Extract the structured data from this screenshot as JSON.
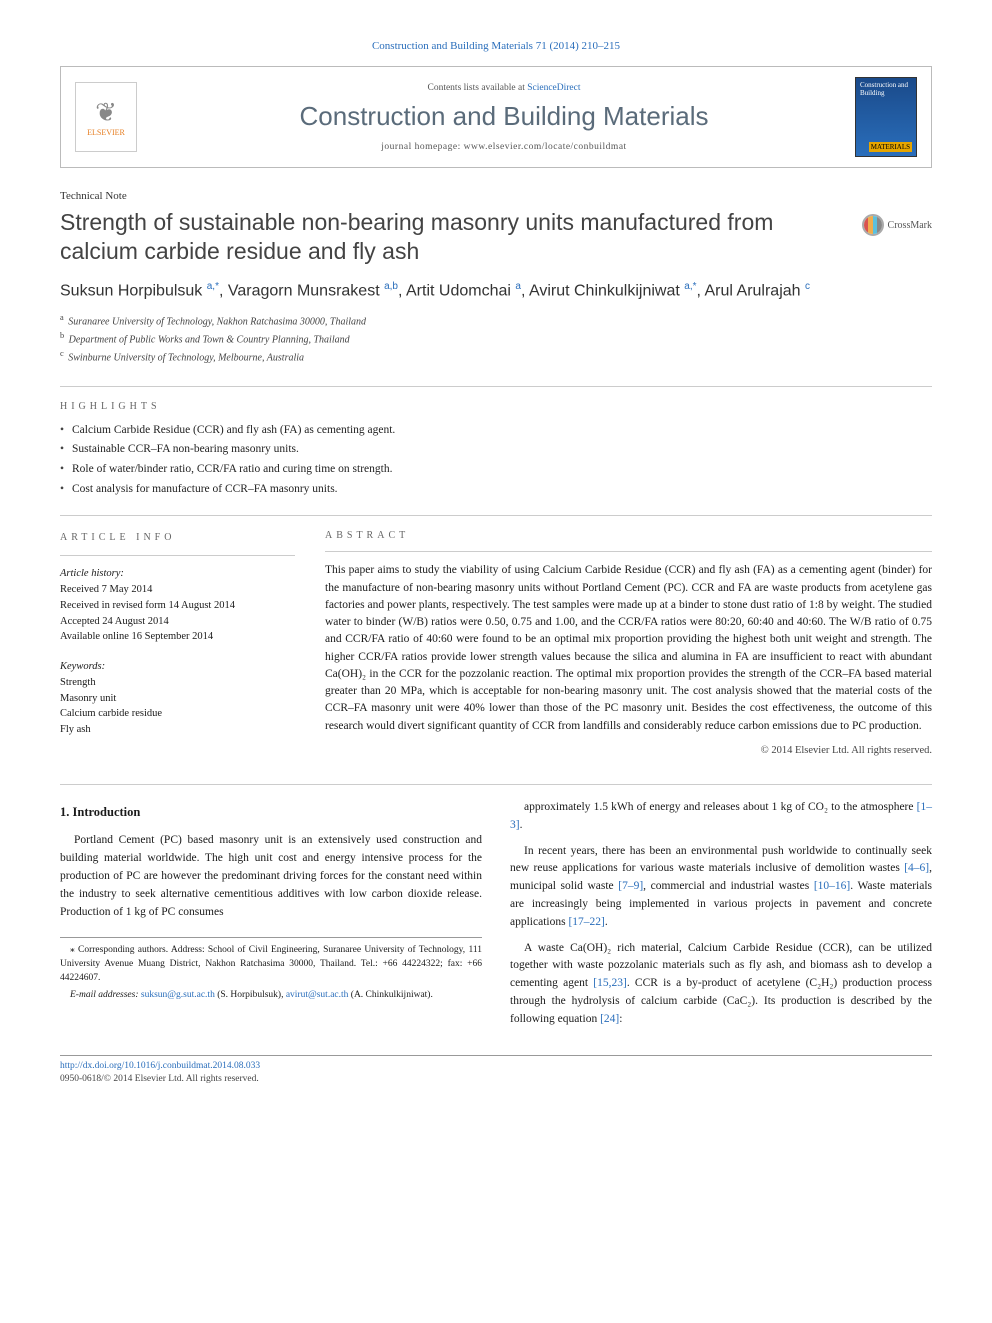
{
  "citation": "Construction and Building Materials 71 (2014) 210–215",
  "header": {
    "contents_prefix": "Contents lists available at ",
    "contents_link": "ScienceDirect",
    "journal_name": "Construction and Building Materials",
    "homepage_prefix": "journal homepage: ",
    "homepage_url": "www.elsevier.com/locate/conbuildmat",
    "publisher": "ELSEVIER",
    "cover_title": "Construction and Building",
    "cover_word": "MATERIALS"
  },
  "technote": "Technical Note",
  "article_title": "Strength of sustainable non-bearing masonry units manufactured from calcium carbide residue and fly ash",
  "crossmark_label": "CrossMark",
  "authors_html": "Suksun Horpibulsuk <sup>a,*</sup>, Varagorn Munsrakest <sup>a,b</sup>, Artit Udomchai <sup>a</sup>, Avirut Chinkulkijniwat <sup>a,*</sup>, Arul Arulrajah <sup>c</sup>",
  "affiliations": [
    "Suranaree University of Technology, Nakhon Ratchasima 30000, Thailand",
    "Department of Public Works and Town & Country Planning, Thailand",
    "Swinburne University of Technology, Melbourne, Australia"
  ],
  "aff_marks": [
    "a",
    "b",
    "c"
  ],
  "highlights_label": "HIGHLIGHTS",
  "highlights": [
    "Calcium Carbide Residue (CCR) and fly ash (FA) as cementing agent.",
    "Sustainable CCR–FA non-bearing masonry units.",
    "Role of water/binder ratio, CCR/FA ratio and curing time on strength.",
    "Cost analysis for manufacture of CCR–FA masonry units."
  ],
  "info_label": "ARTICLE INFO",
  "abstract_label": "ABSTRACT",
  "history": {
    "head": "Article history:",
    "items": [
      "Received 7 May 2014",
      "Received in revised form 14 August 2014",
      "Accepted 24 August 2014",
      "Available online 16 September 2014"
    ]
  },
  "keywords": {
    "head": "Keywords:",
    "items": [
      "Strength",
      "Masonry unit",
      "Calcium carbide residue",
      "Fly ash"
    ]
  },
  "abstract": "This paper aims to study the viability of using Calcium Carbide Residue (CCR) and fly ash (FA) as a cementing agent (binder) for the manufacture of non-bearing masonry units without Portland Cement (PC). CCR and FA are waste products from acetylene gas factories and power plants, respectively. The test samples were made up at a binder to stone dust ratio of 1:8 by weight. The studied water to binder (W/B) ratios were 0.50, 0.75 and 1.00, and the CCR/FA ratios were 80:20, 60:40 and 40:60. The W/B ratio of 0.75 and CCR/FA ratio of 40:60 were found to be an optimal mix proportion providing the highest both unit weight and strength. The higher CCR/FA ratios provide lower strength values because the silica and alumina in FA are insufficient to react with abundant Ca(OH)₂ in the CCR for the pozzolanic reaction. The optimal mix proportion provides the strength of the CCR–FA based material greater than 20 MPa, which is acceptable for non-bearing masonry unit. The cost analysis showed that the material costs of the CCR–FA masonry unit were 40% lower than those of the PC masonry unit. Besides the cost effectiveness, the outcome of this research would divert significant quantity of CCR from landfills and considerably reduce carbon emissions due to PC production.",
  "abs_copyright": "© 2014 Elsevier Ltd. All rights reserved.",
  "intro_heading": "1. Introduction",
  "intro": {
    "p1": "Portland Cement (PC) based masonry unit is an extensively used construction and building material worldwide. The high unit cost and energy intensive process for the production of PC are however the predominant driving forces for the constant need within the industry to seek alternative cementitious additives with low carbon dioxide release. Production of 1 kg of PC consumes",
    "p2a": "approximately 1.5 kWh of energy and releases about 1 kg of CO₂ to the atmosphere ",
    "p2b": ".",
    "p3a": "In recent years, there has been an environmental push worldwide to continually seek new reuse applications for various waste materials inclusive of demolition wastes ",
    "p3b": ", municipal solid waste ",
    "p3c": ", commercial and industrial wastes ",
    "p3d": ". Waste materials are increasingly being implemented in various projects in pavement and concrete applications ",
    "p3e": ".",
    "p4a": "A waste Ca(OH)₂ rich material, Calcium Carbide Residue (CCR), can be utilized together with waste pozzolanic materials such as fly ash, and biomass ash to develop a cementing agent ",
    "p4b": ". CCR is a by-product of acetylene (C₂H₂) production process through the hydrolysis of calcium carbide (CaC₂). Its production is described by the following equation ",
    "p4c": ":"
  },
  "refs": {
    "r1_3": "[1–3]",
    "r4_6": "[4–6]",
    "r7_9": "[7–9]",
    "r10_16": "[10–16]",
    "r17_22": "[17–22]",
    "r15_23": "[15,23]",
    "r24": "[24]"
  },
  "footnotes": {
    "corr": "⁎ Corresponding authors. Address: School of Civil Engineering, Suranaree University of Technology, 111 University Avenue Muang District, Nakhon Ratchasima 30000, Thailand. Tel.: +66 44224322; fax: +66 44224607.",
    "emails_label": "E-mail addresses: ",
    "email1": "suksun@g.sut.ac.th",
    "email1_person": " (S. Horpibulsuk), ",
    "email2": "avirut@sut.ac.th",
    "email2_person": " (A. Chinkulkijniwat)."
  },
  "doi": {
    "url": "http://dx.doi.org/10.1016/j.conbuildmat.2014.08.033",
    "issn_line": "0950-0618/© 2014 Elsevier Ltd. All rights reserved."
  },
  "colors": {
    "link": "#2a6ebb",
    "journal_title": "#5a6b7a",
    "elsevier_orange": "#e67e22"
  }
}
